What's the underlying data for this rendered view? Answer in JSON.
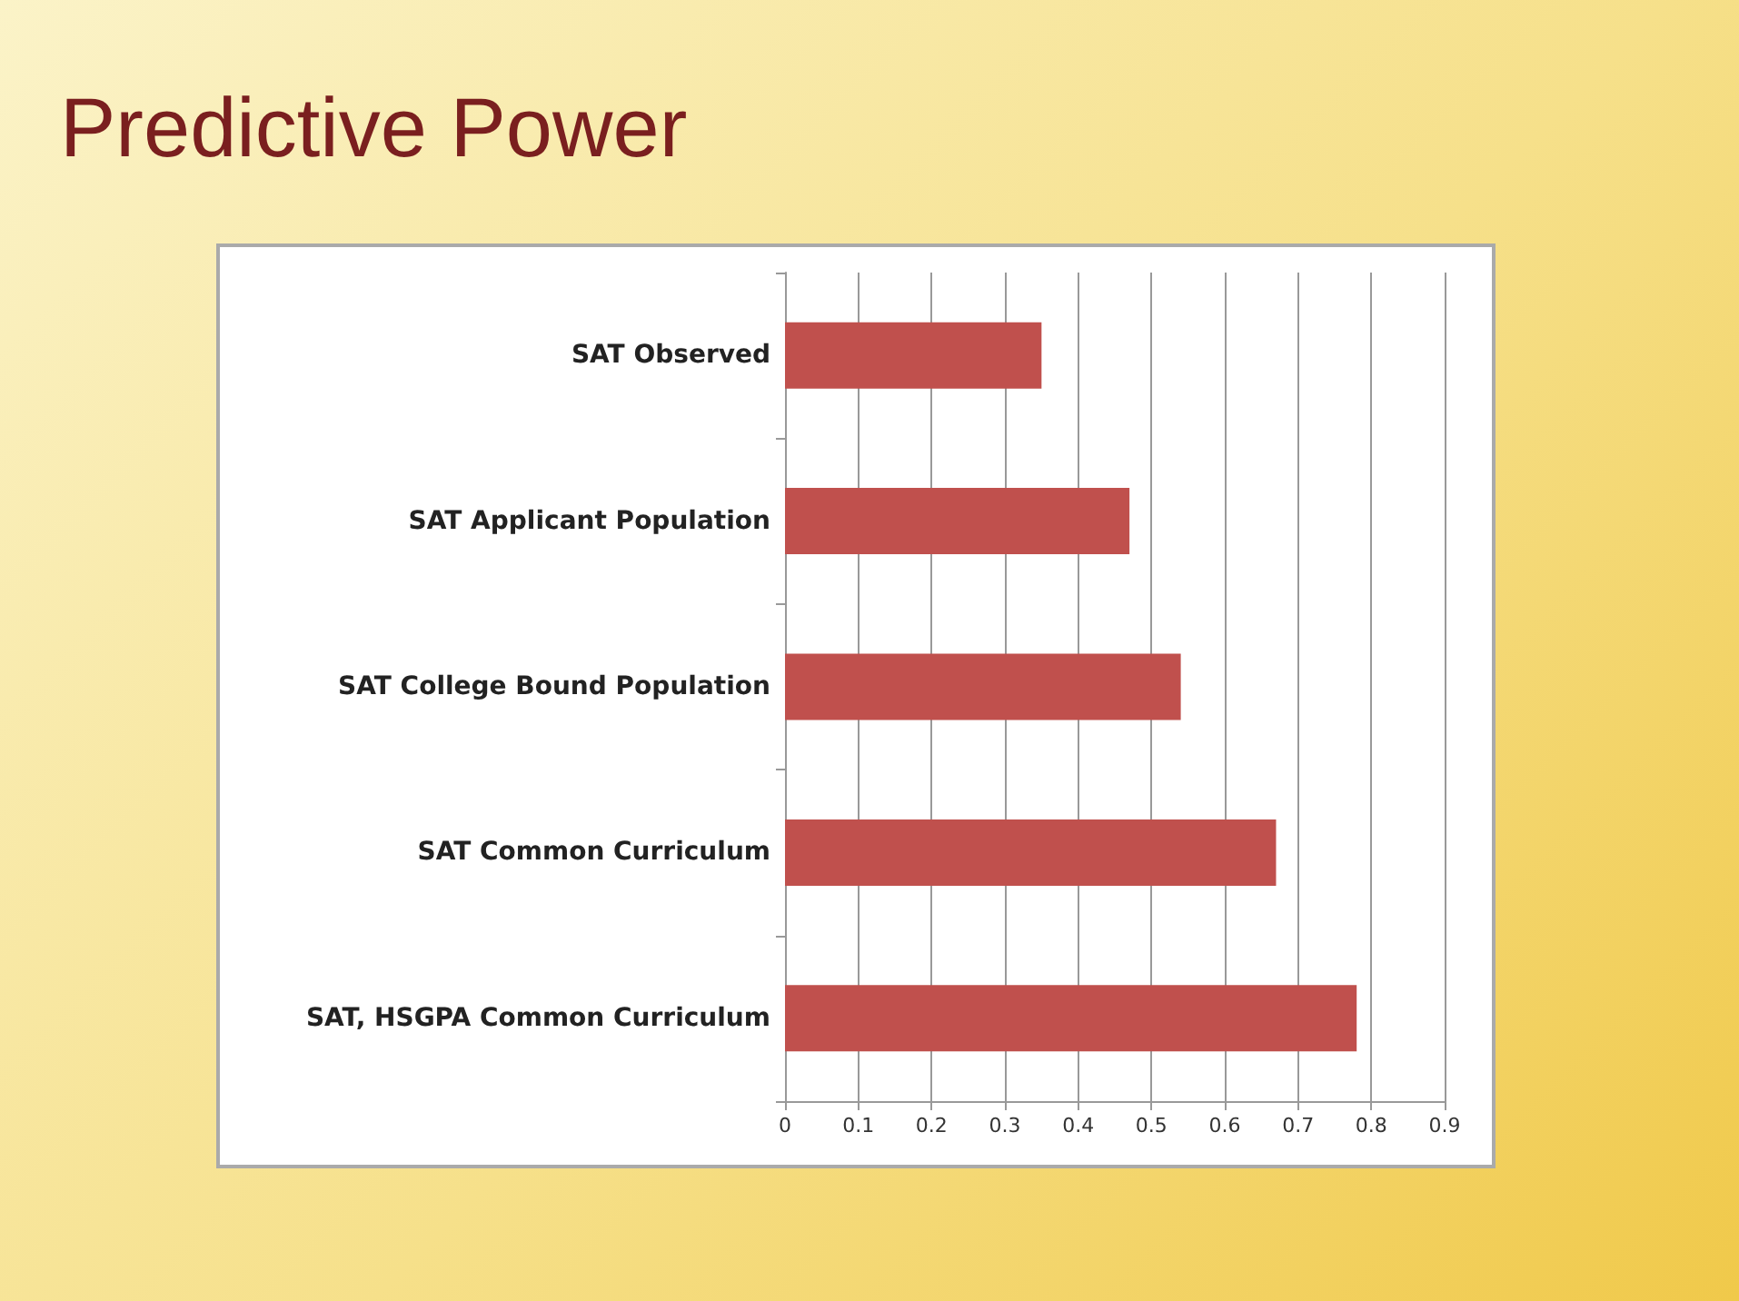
{
  "chart_data": {
    "type": "bar",
    "orientation": "horizontal",
    "title": "Predictive Power",
    "categories": [
      "SAT Observed",
      "SAT Applicant Population",
      "SAT College Bound Population",
      "SAT Common Curriculum",
      "SAT, HSGPA Common Curriculum"
    ],
    "values": [
      0.35,
      0.47,
      0.54,
      0.67,
      0.78
    ],
    "color": "#c0504d",
    "xlim": [
      0,
      0.9
    ],
    "xticks": [
      0,
      0.1,
      0.2,
      0.3,
      0.4,
      0.5,
      0.6,
      0.7,
      0.8,
      0.9
    ],
    "grid": "x"
  }
}
